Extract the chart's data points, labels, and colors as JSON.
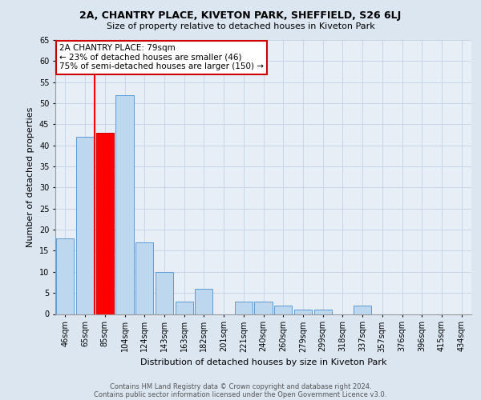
{
  "title1": "2A, CHANTRY PLACE, KIVETON PARK, SHEFFIELD, S26 6LJ",
  "title2": "Size of property relative to detached houses in Kiveton Park",
  "xlabel": "Distribution of detached houses by size in Kiveton Park",
  "ylabel": "Number of detached properties",
  "footnote1": "Contains HM Land Registry data © Crown copyright and database right 2024.",
  "footnote2": "Contains public sector information licensed under the Open Government Licence v3.0.",
  "categories": [
    "46sqm",
    "65sqm",
    "85sqm",
    "104sqm",
    "124sqm",
    "143sqm",
    "163sqm",
    "182sqm",
    "201sqm",
    "221sqm",
    "240sqm",
    "260sqm",
    "279sqm",
    "299sqm",
    "318sqm",
    "337sqm",
    "357sqm",
    "376sqm",
    "396sqm",
    "415sqm",
    "434sqm"
  ],
  "values": [
    18,
    42,
    43,
    52,
    17,
    10,
    3,
    6,
    0,
    3,
    3,
    2,
    1,
    1,
    0,
    2,
    0,
    0,
    0,
    0,
    0
  ],
  "bar_color": "#bdd7ee",
  "bar_edge_color": "#5b9bd5",
  "highlight_bar_index": 2,
  "highlight_bar_color": "#ff0000",
  "highlight_bar_edge_color": "#cc0000",
  "annotation_text": "2A CHANTRY PLACE: 79sqm\n← 23% of detached houses are smaller (46)\n75% of semi-detached houses are larger (150) →",
  "annotation_box_color": "#ffffff",
  "annotation_box_edge_color": "#cc0000",
  "vline_x": 1.5,
  "ylim": [
    0,
    65
  ],
  "yticks": [
    0,
    5,
    10,
    15,
    20,
    25,
    30,
    35,
    40,
    45,
    50,
    55,
    60,
    65
  ],
  "grid_color": "#c8d4e8",
  "bg_color": "#dce6f0",
  "plot_bg_color": "#e8eef6",
  "title1_fontsize": 9,
  "title2_fontsize": 8,
  "ylabel_fontsize": 8,
  "xlabel_fontsize": 8,
  "tick_fontsize": 7,
  "footnote_fontsize": 6
}
